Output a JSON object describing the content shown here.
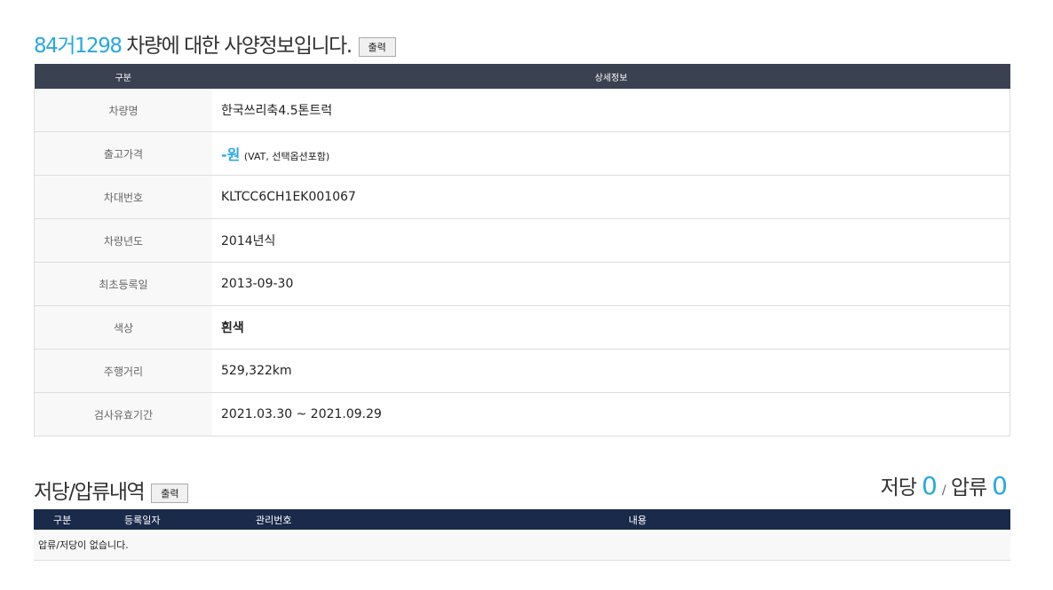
{
  "title": {
    "plate": "84거1298",
    "text": "차량에 대한 사양정보입니다.",
    "print": "출력"
  },
  "spec": {
    "headers": [
      "구분",
      "상세정보"
    ],
    "rows": [
      {
        "label": "차량명",
        "value": "한국쓰리축4.5톤트럭"
      },
      {
        "label": "출고가격",
        "value": "-원",
        "note": "(VAT, 선택옵션포함)"
      },
      {
        "label": "차대번호",
        "value": "KLTCC6CH1EK001067"
      },
      {
        "label": "차량년도",
        "value": "2014년식"
      },
      {
        "label": "최초등록일",
        "value": "2013-09-30"
      },
      {
        "label": "색상",
        "value": "흰색"
      },
      {
        "label": "주행거리",
        "value": "529,322km"
      },
      {
        "label": "검사유효기간",
        "value": "2021.03.30 ~ 2021.09.29"
      }
    ]
  },
  "lien": {
    "title": "저당/압류내역",
    "print": "출력",
    "mortgage_label": "저당",
    "mortgage_count": "0",
    "sep": "/",
    "seizure_label": "압류",
    "seizure_count": "0",
    "headers": [
      "구분",
      "등록일자",
      "관리번호",
      "내용"
    ],
    "empty": "압류/저당이 없습니다."
  },
  "colors": {
    "accent": "#29a8e0",
    "header": "#3a4150",
    "header2": "#1a2a4a"
  }
}
